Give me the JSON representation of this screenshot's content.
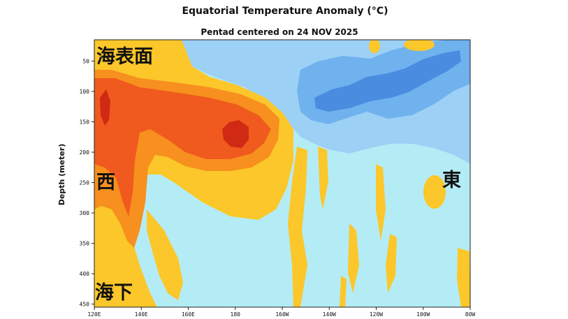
{
  "chart_data": {
    "type": "heatmap",
    "title": "Equatorial Temperature Anomaly (°C)",
    "subtitle": "Pentad centered on 24 NOV 2025",
    "ylabel": "Depth (meter)",
    "x_tick_labels": [
      "120E",
      "140E",
      "160E",
      "180",
      "160W",
      "140W",
      "120W",
      "100W",
      "80W"
    ],
    "y_tick_labels": [
      "50",
      "100",
      "150",
      "200",
      "250",
      "300",
      "350",
      "400",
      "450"
    ],
    "xlim": [
      "120E",
      "80W"
    ],
    "ylim": [
      455,
      15
    ],
    "colors": {
      "warm_4": "#d02a14",
      "warm_3": "#f05a1e",
      "warm_2": "#f7901e",
      "warm_1": "#fbc72a",
      "neutral": "#b4ecf5",
      "cool_1": "#9dd0f5",
      "cool_2": "#6fb2ee",
      "cool_3": "#4a8ce0"
    },
    "annotations": {
      "surface": "海表面",
      "west": "西",
      "deep": "海下",
      "east": "東"
    }
  }
}
